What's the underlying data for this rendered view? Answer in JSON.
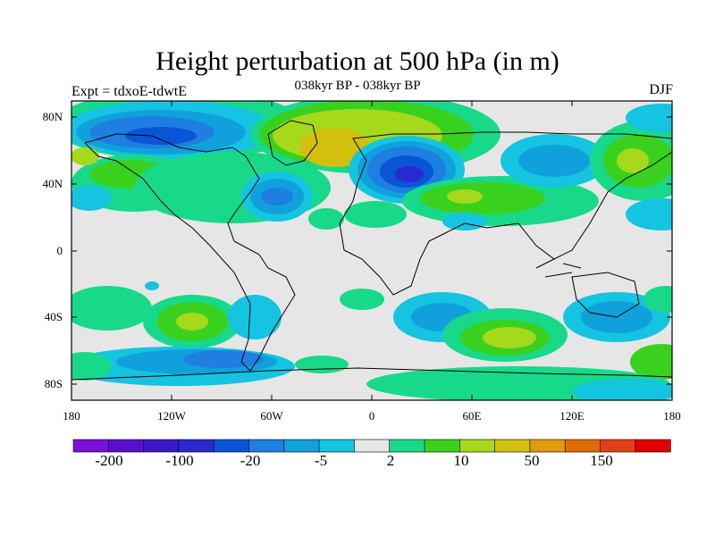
{
  "title": "Height perturbation at 500 hPa (in m)",
  "subtitle": "038kyr BP - 038kyr BP",
  "left_label": "Expt = tdxoE-tdwtE",
  "right_label": "DJF",
  "axes": {
    "y_ticks": [
      "80N",
      "40N",
      "0",
      "40S",
      "80S"
    ],
    "x_ticks": [
      "180",
      "120W",
      "60W",
      "0",
      "60E",
      "120E",
      "180"
    ]
  },
  "colorbar": {
    "colors": [
      "#7b10d8",
      "#5a0fcf",
      "#3b18c6",
      "#2a2ad0",
      "#0a55d6",
      "#1e7fe0",
      "#10a0dc",
      "#14c4e0",
      "#e6e6e6",
      "#18d98a",
      "#3ad11e",
      "#a6d81c",
      "#d2bf0e",
      "#e09a0a",
      "#e06a08",
      "#e0401a",
      "#e00000"
    ],
    "labels": [
      "-200",
      "-100",
      "-20",
      "-5",
      "2",
      "10",
      "50",
      "150"
    ]
  },
  "palette": {
    "neutral": "#e6e6e6",
    "neg1": "#14c4e0",
    "neg2": "#10a0dc",
    "neg3": "#1e7fe0",
    "neg4": "#0a55d6",
    "neg5": "#2a2ad0",
    "pos1": "#18d98a",
    "pos2": "#3ad11e",
    "pos3": "#a6d81c",
    "pos4": "#d2bf0e",
    "coast": "#000000"
  }
}
